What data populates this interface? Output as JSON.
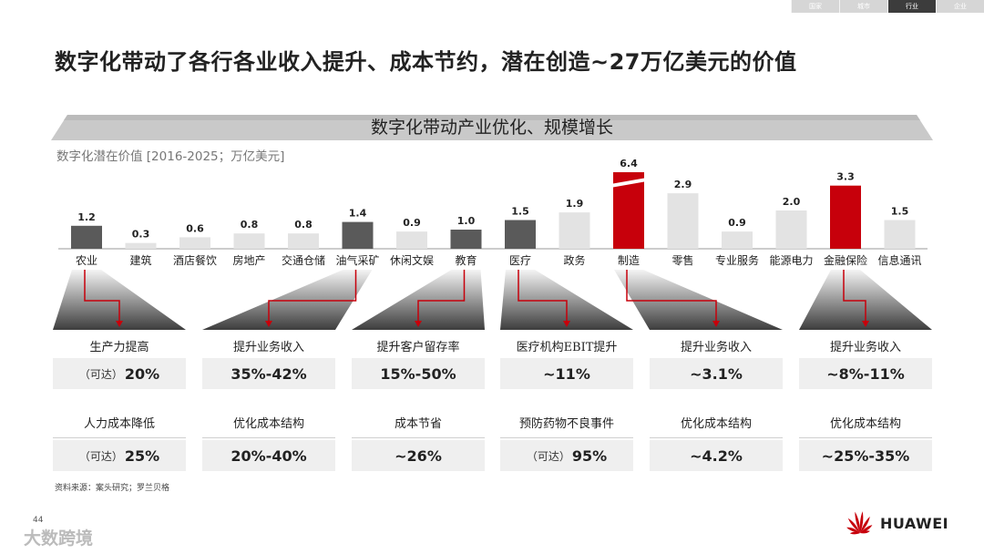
{
  "nav": {
    "tabs": [
      "国家",
      "城市",
      "行业",
      "企业"
    ],
    "active_index": 2
  },
  "title": "数字化带动了各行各业收入提升、成本节约，潜在创造~27万亿美元的价值",
  "banner": "数字化带动产业优化、规模增长",
  "chart_data": {
    "type": "bar",
    "title": "数字化潜在价值 [2016-2025；万亿美元]",
    "categories": [
      "农业",
      "建筑",
      "酒店餐饮",
      "房地产",
      "交通仓储",
      "油气采矿",
      "休闲文娱",
      "教育",
      "医疗",
      "政务",
      "制造",
      "零售",
      "专业服务",
      "能源电力",
      "金融保险",
      "信息通讯"
    ],
    "values": [
      1.2,
      0.3,
      0.6,
      0.8,
      0.8,
      1.4,
      0.9,
      1.0,
      1.5,
      1.9,
      6.4,
      2.9,
      0.9,
      2.0,
      3.3,
      1.5
    ],
    "value_labels": [
      "1.2",
      "0.3",
      "0.6",
      "0.8",
      "0.8",
      "1.4",
      "0.9",
      "1.0",
      "1.5",
      "1.9",
      "6.4",
      "2.9",
      "0.9",
      "2.0",
      "3.3",
      "1.5"
    ],
    "highlight": [
      "dark",
      "light",
      "light",
      "light",
      "light",
      "dark",
      "light",
      "dark",
      "dark",
      "light",
      "red",
      "light",
      "light",
      "light",
      "red",
      "light"
    ],
    "broken_axis_bar": 10,
    "colors": {
      "dark": "#5a5a5a",
      "light": "#e3e3e3",
      "red": "#c7000b"
    }
  },
  "callouts": [
    {
      "from_index": 0,
      "rows": [
        {
          "label": "生产力提高",
          "prefix": "（可达）",
          "value": "20%"
        },
        {
          "label": "人力成本降低",
          "prefix": "（可达）",
          "value": "25%"
        }
      ]
    },
    {
      "from_index": 5,
      "rows": [
        {
          "label": "提升业务收入",
          "prefix": "",
          "value": "35%-42%"
        },
        {
          "label": "优化成本结构",
          "prefix": "",
          "value": "20%-40%"
        }
      ]
    },
    {
      "from_index": 7,
      "rows": [
        {
          "label": "提升客户留存率",
          "prefix": "",
          "value": "15%-50%"
        },
        {
          "label": "成本节省",
          "prefix": "",
          "value": "~26%"
        }
      ]
    },
    {
      "from_index": 8,
      "rows": [
        {
          "label": "医疗机构EBIT提升",
          "prefix": "",
          "value": "~11%"
        },
        {
          "label": "预防药物不良事件",
          "prefix": "（可达）",
          "value": "95%"
        }
      ]
    },
    {
      "from_index": 10,
      "rows": [
        {
          "label": "提升业务收入",
          "prefix": "",
          "value": "~3.1%"
        },
        {
          "label": "优化成本结构",
          "prefix": "",
          "value": "~4.2%"
        }
      ]
    },
    {
      "from_index": 14,
      "rows": [
        {
          "label": "提升业务收入",
          "prefix": "",
          "value": "~8%-11%"
        },
        {
          "label": "优化成本结构",
          "prefix": "",
          "value": "~25%-35%"
        }
      ]
    }
  ],
  "source": "资料来源：案头研究；罗兰贝格",
  "page_number": "44",
  "watermark": "大数跨境",
  "logo": {
    "text": "HUAWEI",
    "color": "#c7000b"
  }
}
